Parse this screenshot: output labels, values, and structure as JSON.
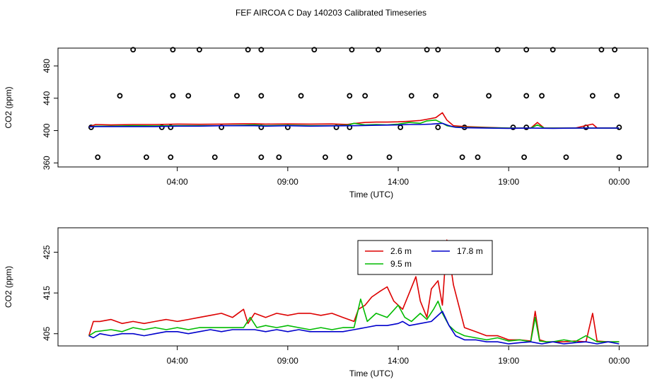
{
  "figure_title": "FEF AIRCOA C  Day 140203  Calibrated Timeseries",
  "colors": {
    "red": "#dd0000",
    "green": "#00bb00",
    "blue": "#0000cc",
    "black": "#000000"
  },
  "chart_data": [
    {
      "type": "line",
      "title": "",
      "xlabel": "Time (UTC)",
      "ylabel": "CO2 (ppm)",
      "xlim": [
        -1.4,
        25.3
      ],
      "ylim": [
        355,
        502
      ],
      "x_ticks": [
        4,
        9,
        14,
        19,
        24
      ],
      "x_tick_labels": [
        "04:00",
        "09:00",
        "14:00",
        "19:00",
        "00:00"
      ],
      "y_ticks": [
        360,
        400,
        440,
        480
      ],
      "y_tick_labels": [
        "360",
        "400",
        "440",
        "480"
      ],
      "flag_rows": [
        {
          "y": 367,
          "x": [
            0.4,
            2.6,
            3.7,
            5.7,
            7.8,
            8.6,
            10.7,
            11.8,
            13.6,
            16.9,
            17.6,
            19.7,
            21.6,
            24.0
          ]
        },
        {
          "y": 404,
          "x": [
            0.1,
            3.3,
            3.7,
            6.0,
            7.8,
            9.0,
            11.2,
            11.8,
            14.1,
            15.8,
            17.0,
            19.2,
            19.8,
            22.5,
            24.0
          ]
        },
        {
          "y": 443,
          "x": [
            1.4,
            3.8,
            4.5,
            6.7,
            7.8,
            9.6,
            11.8,
            12.5,
            14.6,
            15.7,
            18.1,
            19.8,
            20.5,
            22.8,
            23.9
          ]
        },
        {
          "y": 500,
          "x": [
            2.0,
            3.8,
            5.0,
            7.2,
            7.8,
            10.2,
            11.9,
            13.1,
            15.3,
            15.8,
            18.5,
            19.8,
            21.0,
            23.2,
            23.8
          ]
        }
      ],
      "series": [
        {
          "name": "2.6 m",
          "color": "#dd0000",
          "x": [
            0.0,
            0.3,
            1.0,
            2.0,
            3.0,
            4.0,
            5.0,
            6.0,
            7.0,
            7.5,
            8.0,
            9.0,
            10.0,
            11.0,
            11.7,
            12.0,
            12.5,
            13.0,
            13.5,
            14.0,
            14.5,
            15.0,
            15.3,
            15.7,
            16.0,
            16.2,
            16.5,
            17.0,
            18.0,
            19.0,
            20.0,
            20.3,
            20.6,
            21.0,
            22.0,
            22.8,
            23.0,
            24.0
          ],
          "values": [
            404.5,
            407.5,
            407.0,
            407.5,
            407.5,
            408.0,
            407.8,
            408.0,
            408.5,
            408.5,
            408.0,
            408.2,
            408.0,
            408.2,
            407.6,
            408.8,
            410.0,
            410.5,
            410.5,
            410.8,
            411.5,
            412.5,
            414.0,
            416.0,
            422.0,
            413.0,
            406.0,
            405.0,
            404.0,
            403.0,
            403.0,
            410.0,
            403.2,
            403.0,
            403.0,
            408.0,
            403.2,
            403.0
          ]
        },
        {
          "name": "9.5 m",
          "color": "#00bb00",
          "x": [
            0.0,
            0.3,
            1.0,
            2.0,
            3.0,
            4.0,
            5.0,
            6.0,
            7.0,
            7.5,
            8.0,
            9.0,
            10.0,
            11.0,
            11.7,
            12.0,
            12.5,
            13.0,
            13.5,
            14.0,
            14.5,
            15.0,
            15.3,
            15.7,
            16.0,
            16.2,
            16.5,
            17.0,
            18.0,
            19.0,
            20.0,
            20.3,
            20.6,
            21.0,
            22.0,
            23.0,
            24.0
          ],
          "values": [
            404.5,
            405.5,
            405.5,
            406.0,
            405.8,
            406.0,
            406.0,
            406.0,
            406.5,
            407.0,
            406.0,
            406.5,
            406.0,
            406.0,
            406.5,
            409.0,
            407.0,
            407.5,
            407.0,
            408.0,
            410.0,
            409.0,
            412.0,
            413.0,
            409.0,
            406.0,
            404.5,
            404.0,
            403.5,
            403.0,
            403.0,
            407.0,
            403.2,
            403.0,
            403.0,
            403.0,
            403.0
          ]
        },
        {
          "name": "17.8 m",
          "color": "#0000cc",
          "x": [
            0.0,
            0.3,
            1.0,
            2.0,
            3.0,
            4.0,
            5.0,
            6.0,
            7.0,
            7.5,
            8.0,
            9.0,
            10.0,
            11.0,
            12.0,
            13.0,
            14.0,
            14.5,
            15.0,
            15.5,
            16.0,
            16.3,
            16.6,
            17.0,
            18.0,
            19.0,
            20.0,
            21.0,
            22.0,
            23.0,
            24.0
          ],
          "values": [
            404.5,
            405.0,
            405.0,
            405.0,
            405.0,
            405.5,
            405.5,
            406.0,
            406.0,
            406.0,
            405.5,
            406.0,
            405.5,
            405.8,
            406.0,
            406.5,
            407.0,
            407.5,
            407.5,
            408.0,
            409.0,
            406.0,
            404.0,
            403.5,
            403.0,
            402.8,
            403.0,
            402.8,
            403.0,
            403.0,
            403.0
          ]
        }
      ]
    },
    {
      "type": "line",
      "title": "",
      "xlabel": "Time (UTC)",
      "ylabel": "CO2 (ppm)",
      "xlim": [
        -1.4,
        25.3
      ],
      "ylim": [
        402,
        431
      ],
      "x_ticks": [
        4,
        9,
        14,
        19,
        24
      ],
      "x_tick_labels": [
        "04:00",
        "09:00",
        "14:00",
        "19:00",
        "00:00"
      ],
      "y_ticks": [
        405,
        415,
        425
      ],
      "y_tick_labels": [
        "405",
        "415",
        "425"
      ],
      "legend": {
        "position": "top-center",
        "entries": [
          {
            "label": "2.6 m",
            "color": "#dd0000"
          },
          {
            "label": "17.8 m",
            "color": "#0000cc"
          },
          {
            "label": "9.5 m",
            "color": "#00bb00"
          }
        ]
      },
      "series": [
        {
          "name": "2.6 m",
          "color": "#dd0000",
          "x": [
            0.0,
            0.2,
            0.5,
            1.0,
            1.5,
            2.0,
            2.5,
            3.0,
            3.5,
            4.0,
            4.5,
            5.0,
            5.5,
            6.0,
            6.5,
            7.0,
            7.2,
            7.5,
            8.0,
            8.5,
            9.0,
            9.5,
            10.0,
            10.5,
            11.0,
            11.5,
            12.0,
            12.2,
            12.5,
            12.8,
            13.2,
            13.5,
            13.8,
            14.2,
            14.5,
            14.8,
            15.0,
            15.3,
            15.5,
            15.8,
            16.0,
            16.2,
            16.5,
            17.0,
            17.5,
            18.0,
            18.5,
            19.0,
            19.5,
            20.0,
            20.2,
            20.4,
            20.7,
            21.0,
            21.5,
            22.0,
            22.5,
            22.8,
            23.0,
            23.5,
            24.0
          ],
          "values": [
            404.5,
            408.0,
            408.0,
            408.5,
            407.5,
            408.0,
            407.5,
            408.0,
            408.5,
            408.0,
            408.5,
            409.0,
            409.5,
            410.0,
            409.0,
            411.0,
            407.5,
            410.0,
            409.0,
            410.0,
            409.5,
            410.0,
            410.0,
            409.5,
            410.0,
            409.0,
            408.0,
            411.0,
            412.0,
            414.0,
            415.5,
            416.5,
            413.0,
            411.0,
            415.0,
            419.0,
            413.0,
            409.0,
            416.0,
            418.0,
            412.0,
            428.0,
            417.0,
            406.5,
            405.5,
            404.5,
            404.5,
            403.5,
            403.5,
            403.2,
            410.5,
            403.5,
            403.0,
            403.0,
            403.0,
            403.2,
            403.0,
            410.0,
            403.2,
            403.0,
            403.0
          ]
        },
        {
          "name": "9.5 m",
          "color": "#00bb00",
          "x": [
            0.0,
            0.3,
            1.0,
            1.5,
            2.0,
            2.5,
            3.0,
            3.5,
            4.0,
            4.5,
            5.0,
            5.5,
            6.0,
            6.5,
            7.0,
            7.3,
            7.6,
            8.0,
            8.5,
            9.0,
            9.5,
            10.0,
            10.5,
            11.0,
            11.5,
            12.0,
            12.3,
            12.6,
            13.0,
            13.5,
            14.0,
            14.3,
            14.6,
            15.0,
            15.3,
            15.6,
            15.8,
            16.0,
            16.3,
            16.6,
            17.0,
            17.5,
            18.0,
            18.5,
            19.0,
            19.5,
            20.0,
            20.2,
            20.4,
            20.7,
            21.0,
            21.5,
            22.0,
            22.5,
            23.0,
            23.5,
            24.0
          ],
          "values": [
            404.5,
            405.5,
            406.0,
            405.5,
            406.5,
            406.0,
            406.5,
            406.0,
            406.5,
            406.0,
            406.5,
            406.5,
            406.5,
            406.5,
            406.5,
            409.0,
            406.5,
            407.0,
            406.5,
            407.0,
            406.5,
            406.0,
            406.5,
            406.0,
            406.5,
            406.5,
            413.5,
            408.0,
            410.0,
            409.0,
            412.0,
            409.0,
            408.0,
            410.0,
            408.5,
            411.0,
            413.0,
            410.0,
            407.0,
            405.5,
            404.5,
            404.0,
            403.5,
            404.0,
            403.2,
            403.5,
            403.0,
            409.0,
            403.2,
            403.0,
            403.0,
            403.5,
            403.0,
            404.5,
            403.0,
            403.0,
            403.0
          ]
        },
        {
          "name": "17.8 m",
          "color": "#0000cc",
          "x": [
            0.0,
            0.2,
            0.5,
            1.0,
            1.5,
            2.0,
            2.5,
            3.0,
            3.5,
            4.0,
            4.5,
            5.0,
            5.5,
            6.0,
            6.5,
            7.0,
            7.5,
            8.0,
            8.5,
            9.0,
            9.5,
            10.0,
            10.5,
            11.0,
            11.5,
            12.0,
            12.5,
            13.0,
            13.5,
            14.0,
            14.2,
            14.5,
            15.0,
            15.5,
            16.0,
            16.3,
            16.6,
            17.0,
            17.5,
            18.0,
            18.5,
            19.0,
            19.5,
            20.0,
            20.5,
            21.0,
            21.5,
            22.0,
            22.5,
            23.0,
            23.5,
            24.0
          ],
          "values": [
            404.5,
            404.0,
            405.0,
            404.5,
            405.0,
            405.0,
            404.5,
            405.0,
            405.5,
            405.5,
            405.0,
            405.5,
            406.0,
            405.5,
            406.0,
            406.0,
            406.0,
            405.5,
            406.0,
            405.5,
            406.0,
            405.5,
            405.5,
            405.5,
            405.5,
            406.0,
            406.5,
            407.0,
            407.0,
            407.5,
            408.0,
            407.0,
            407.5,
            408.0,
            410.5,
            407.0,
            404.5,
            403.5,
            403.5,
            403.0,
            403.0,
            402.5,
            402.8,
            403.0,
            402.5,
            403.0,
            402.5,
            402.8,
            403.0,
            402.5,
            403.0,
            402.5
          ]
        }
      ]
    }
  ]
}
